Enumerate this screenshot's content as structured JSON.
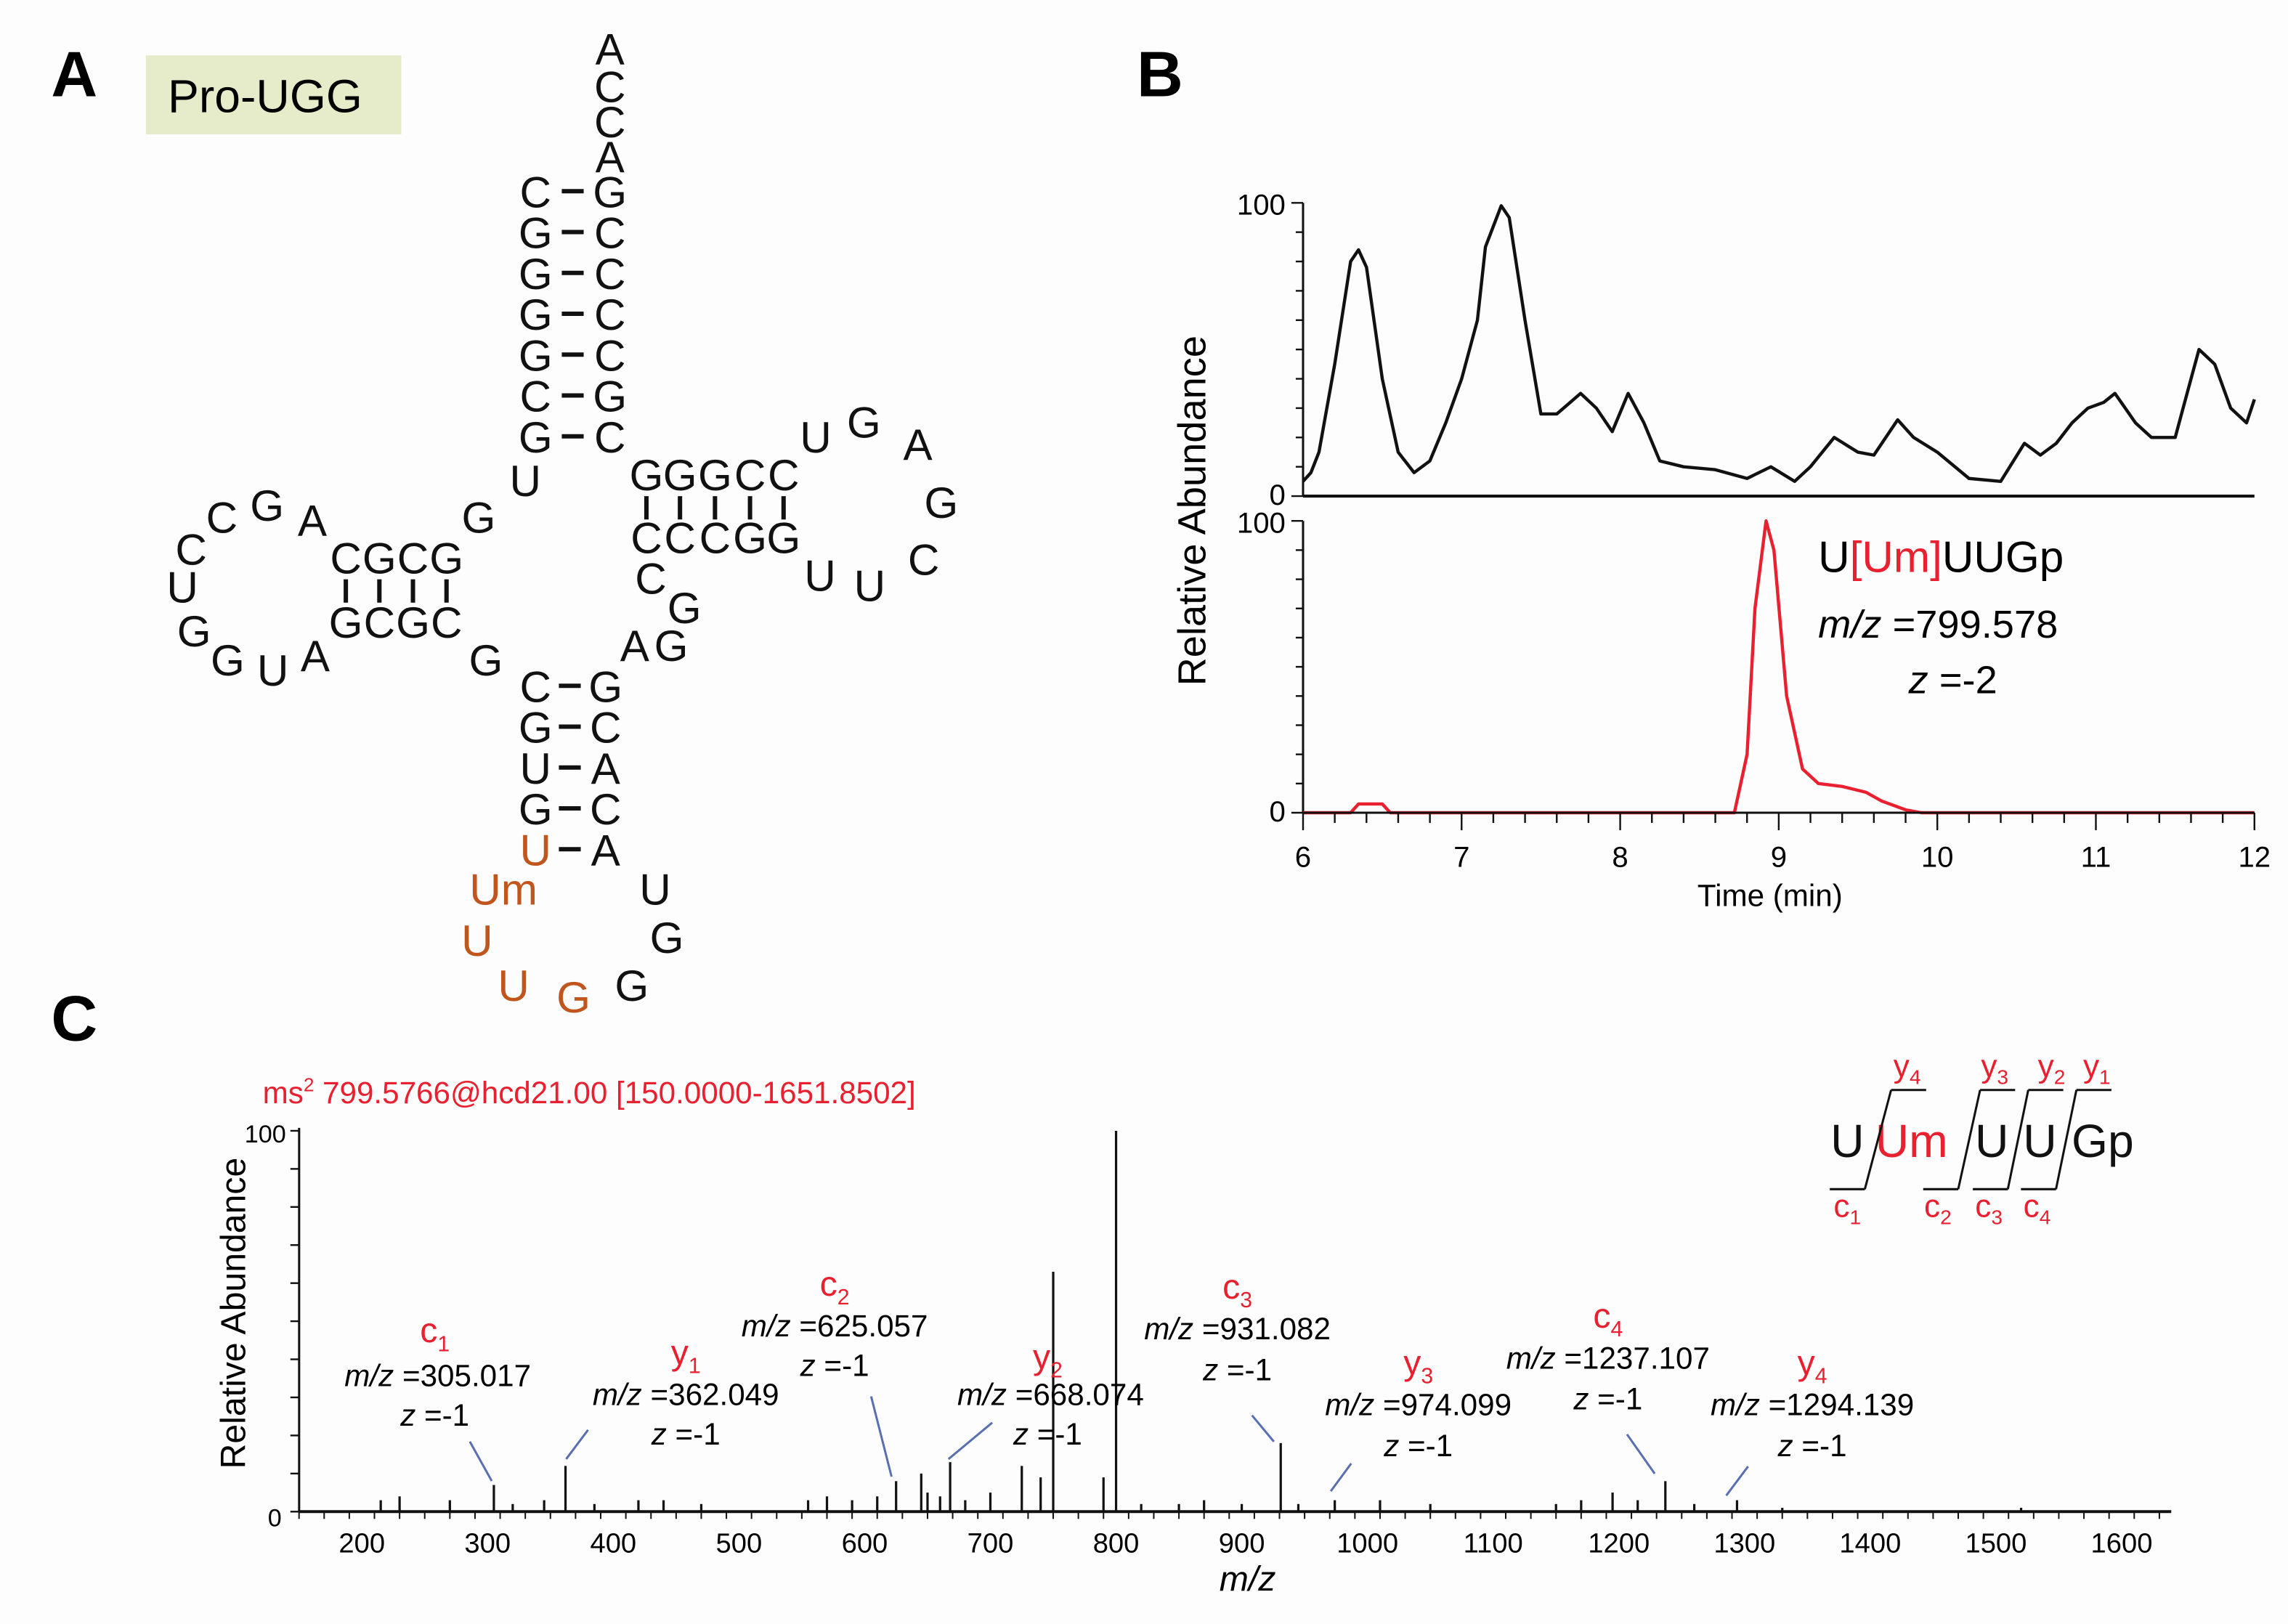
{
  "panels": {
    "a": "A",
    "b": "B",
    "c": "C"
  },
  "trna": {
    "name": "Pro-UGG",
    "nucleotides": [
      "A",
      "C",
      "C",
      "A",
      "C",
      "G",
      "G",
      "G",
      "G",
      "C",
      "G",
      "G",
      "C",
      "C",
      "C",
      "C",
      "G",
      "C",
      "U",
      "G",
      "C",
      "G",
      "C",
      "G",
      "G",
      "C",
      "G",
      "C",
      "A",
      "G",
      "C",
      "C",
      "U",
      "G",
      "G",
      "U",
      "A",
      "G",
      "C",
      "G",
      "U",
      "G",
      "U",
      "G",
      "C",
      "A",
      "C",
      "A",
      "Um",
      "U",
      "U",
      "G",
      "G",
      "G",
      "U",
      "A",
      "G",
      "G",
      "C",
      "G",
      "G",
      "G",
      "C",
      "C",
      "C",
      "C",
      "C",
      "G",
      "G",
      "U",
      "G",
      "A",
      "G",
      "C",
      "U",
      "U"
    ],
    "modified_color": "#c0561e"
  },
  "chart_data": [
    {
      "type": "line",
      "panel": "B-top",
      "xlabel": "Time (min)",
      "ylabel": "Relative Abundance",
      "xlim": [
        6,
        12
      ],
      "ylim": [
        0,
        100
      ],
      "xticks": [
        "6",
        "7",
        "8",
        "9",
        "10",
        "11",
        "12"
      ],
      "yticks": [
        "0",
        "100"
      ],
      "color": "#111111",
      "x": [
        6.0,
        6.05,
        6.1,
        6.2,
        6.3,
        6.35,
        6.4,
        6.5,
        6.6,
        6.7,
        6.8,
        6.9,
        7.0,
        7.1,
        7.15,
        7.25,
        7.3,
        7.4,
        7.5,
        7.6,
        7.75,
        7.85,
        7.95,
        8.05,
        8.15,
        8.25,
        8.4,
        8.6,
        8.8,
        8.95,
        9.1,
        9.2,
        9.35,
        9.5,
        9.6,
        9.75,
        9.85,
        10.0,
        10.2,
        10.4,
        10.55,
        10.65,
        10.75,
        10.85,
        10.95,
        11.05,
        11.12,
        11.25,
        11.35,
        11.5,
        11.55,
        11.65,
        11.75,
        11.85,
        11.95,
        12.0
      ],
      "y": [
        5,
        8,
        15,
        45,
        80,
        84,
        78,
        40,
        15,
        8,
        12,
        25,
        40,
        60,
        85,
        99,
        95,
        60,
        28,
        28,
        35,
        30,
        22,
        35,
        25,
        12,
        10,
        9,
        6,
        10,
        5,
        10,
        20,
        15,
        14,
        26,
        20,
        15,
        6,
        5,
        18,
        14,
        18,
        25,
        30,
        32,
        35,
        25,
        20,
        20,
        30,
        50,
        45,
        30,
        25,
        33
      ]
    },
    {
      "type": "line",
      "panel": "B-bottom",
      "xlim": [
        6,
        12
      ],
      "ylim": [
        0,
        100
      ],
      "yticks": [
        "0",
        "100"
      ],
      "color": "#e8202f",
      "x": [
        6.0,
        6.3,
        6.35,
        6.5,
        6.55,
        8.72,
        8.8,
        8.85,
        8.92,
        8.97,
        9.05,
        9.15,
        9.25,
        9.4,
        9.55,
        9.65,
        9.8,
        9.9,
        12.0
      ],
      "y": [
        0,
        0,
        3,
        3,
        0,
        0,
        20,
        70,
        100,
        90,
        40,
        15,
        10,
        9,
        7,
        4,
        1,
        0,
        0
      ],
      "annotation": {
        "seq_pre": "U",
        "seq_open": "[",
        "seq_mod": "Um",
        "seq_close": "]",
        "seq_post": "UUGp",
        "mz_label": "m/z",
        "mz_value": " =799.578",
        "z_label": "z",
        "z_value": " =-2"
      }
    },
    {
      "type": "bar",
      "panel": "C",
      "title_ms": "ms",
      "title_sup": "2",
      "title_rest": " 799.5766@hcd21.00 [150.0000-1651.8502]",
      "title_color": "#e8202f",
      "xlabel": "m/z",
      "ylabel": "Relative Abundance",
      "xlim": [
        150,
        1651.85
      ],
      "ylim": [
        0,
        100
      ],
      "xticks": [
        "200",
        "300",
        "400",
        "500",
        "600",
        "700",
        "800",
        "900",
        "1000",
        "1100",
        "1200",
        "1300",
        "1400",
        "1500",
        "1600"
      ],
      "yticks": [
        "0",
        "100"
      ],
      "peaks_mz": [
        215,
        230,
        270,
        305,
        320,
        345,
        362,
        385,
        420,
        440,
        470,
        555,
        570,
        590,
        610,
        625,
        645,
        650,
        660,
        668,
        680,
        700,
        725,
        740,
        750,
        790,
        800,
        820,
        850,
        870,
        900,
        931,
        945,
        974,
        1010,
        1050,
        1150,
        1170,
        1195,
        1215,
        1237,
        1260,
        1294,
        1330,
        1520
      ],
      "peaks_int": [
        3,
        4,
        3,
        7,
        2,
        3,
        12,
        2,
        3,
        3,
        2,
        3,
        4,
        3,
        4,
        8,
        10,
        5,
        4,
        13,
        3,
        5,
        12,
        9,
        63,
        9,
        100,
        2,
        2,
        3,
        2,
        18,
        2,
        3,
        3,
        2,
        2,
        3,
        5,
        3,
        8,
        2,
        3,
        1,
        1
      ],
      "annotations": [
        {
          "ion": "c",
          "sub": "1",
          "mz_label": "m/z",
          "mz_value": " =305.017",
          "z_label": "z",
          "z_value": " =-1"
        },
        {
          "ion": "y",
          "sub": "1",
          "mz_label": "m/z",
          "mz_value": " =362.049",
          "z_label": "z",
          "z_value": " =-1"
        },
        {
          "ion": "c",
          "sub": "2",
          "mz_label": "m/z",
          "mz_value": " =625.057",
          "z_label": "z",
          "z_value": " =-1"
        },
        {
          "ion": "y",
          "sub": "2",
          "mz_label": "m/z",
          "mz_value": " =668.074",
          "z_label": "z",
          "z_value": " =-1"
        },
        {
          "ion": "c",
          "sub": "3",
          "mz_label": "m/z",
          "mz_value": " =931.082",
          "z_label": "z",
          "z_value": " =-1"
        },
        {
          "ion": "y",
          "sub": "3",
          "mz_label": "m/z",
          "mz_value": " =974.099",
          "z_label": "z",
          "z_value": " =-1"
        },
        {
          "ion": "c",
          "sub": "4",
          "mz_label": "m/z",
          "mz_value": " =1237.107",
          "z_label": "z",
          "z_value": " =-1"
        },
        {
          "ion": "y",
          "sub": "4",
          "mz_label": "m/z",
          "mz_value": " =1294.139",
          "z_label": "z",
          "z_value": " =-1"
        }
      ],
      "fragment_map": {
        "residues": [
          "U",
          "Um",
          "U",
          "U",
          "Gp"
        ],
        "y_ions": [
          {
            "ion": "y",
            "sub": "4"
          },
          {
            "ion": "y",
            "sub": "3"
          },
          {
            "ion": "y",
            "sub": "2"
          },
          {
            "ion": "y",
            "sub": "1"
          }
        ],
        "c_ions": [
          {
            "ion": "c",
            "sub": "1"
          },
          {
            "ion": "c",
            "sub": "2"
          },
          {
            "ion": "c",
            "sub": "3"
          },
          {
            "ion": "c",
            "sub": "4"
          }
        ]
      },
      "label_color": "#e8202f",
      "leader_color": "#5a6fb0"
    }
  ]
}
